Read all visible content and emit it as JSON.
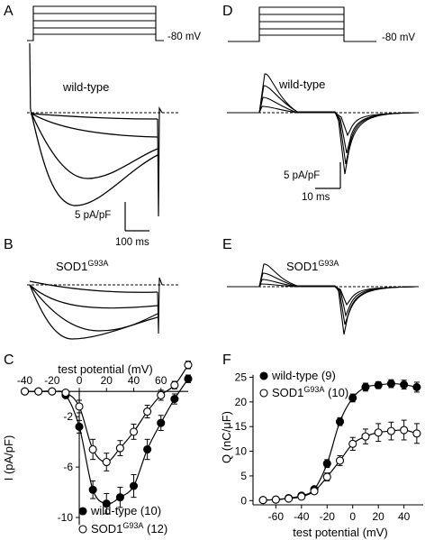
{
  "panels": {
    "A": {
      "letter": "A",
      "condition": "wild-type",
      "holding": "-80 mV",
      "scale_y": "5 pA/pF",
      "scale_x": "100 ms"
    },
    "B": {
      "letter": "B",
      "condition": "SOD1",
      "condition_sup": "G93A"
    },
    "D": {
      "letter": "D",
      "condition": "wild-type",
      "holding": "-80 mV",
      "scale_y": "5 pA/pF",
      "scale_x": "10 ms"
    },
    "E": {
      "letter": "E",
      "condition": "SOD1",
      "condition_sup": "G93A"
    },
    "C": {
      "letter": "C"
    },
    "F": {
      "letter": "F"
    }
  },
  "chart_data": [
    {
      "panel": "C",
      "type": "line",
      "title": "",
      "xlabel": "test potential (mV)",
      "ylabel": "I (pA/pF)",
      "xlim": [
        -45,
        82
      ],
      "ylim": [
        -11,
        0.8
      ],
      "x_ticks": [
        -40,
        -20,
        0,
        20,
        40,
        60
      ],
      "y_ticks": [
        -2,
        -6,
        -10
      ],
      "x_axis_position": "top",
      "legend_position": "bottom-left",
      "series": [
        {
          "name": "wild-type (10)",
          "marker": "filled-circle",
          "x": [
            -40,
            -30,
            -20,
            -10,
            0,
            10,
            20,
            30,
            40,
            50,
            60,
            70,
            80
          ],
          "y": [
            0,
            0,
            0,
            -0.3,
            -2.8,
            -7.8,
            -8.9,
            -8.4,
            -7.5,
            -4.6,
            -2.5,
            -0.6,
            1.0
          ],
          "err": [
            0,
            0,
            0,
            0.2,
            0.5,
            0.7,
            0.8,
            0.8,
            0.9,
            0.8,
            0.6,
            0.4,
            0.3
          ]
        },
        {
          "name": "SOD1G93A (12)",
          "name_base": "SOD1",
          "name_sup": "G93A",
          "name_count": "(12)",
          "marker": "open-circle",
          "x": [
            -40,
            -30,
            -20,
            -10,
            0,
            10,
            20,
            30,
            40,
            50,
            60,
            70,
            80
          ],
          "y": [
            0,
            0,
            0,
            -0.1,
            -1.2,
            -4.6,
            -5.6,
            -4.5,
            -3.2,
            -1.6,
            -0.3,
            0.5,
            2.1
          ],
          "err": [
            0,
            0,
            0,
            0.1,
            0.5,
            0.8,
            0.7,
            0.6,
            0.6,
            0.5,
            0.4,
            0.3,
            0.3
          ]
        }
      ]
    },
    {
      "panel": "F",
      "type": "line",
      "title": "",
      "xlabel": "test potential (mV)",
      "ylabel": "Q (nC/μF)",
      "xlim": [
        -75,
        55
      ],
      "ylim": [
        -0.5,
        26
      ],
      "x_ticks": [
        -60,
        -40,
        -20,
        0,
        20,
        40
      ],
      "y_ticks": [
        0,
        5,
        10,
        15,
        20,
        25
      ],
      "legend_position": "top-left",
      "series": [
        {
          "name": "wild-type (9)",
          "marker": "filled-circle",
          "x": [
            -70,
            -60,
            -50,
            -40,
            -30,
            -20,
            -10,
            0,
            10,
            20,
            30,
            40,
            50
          ],
          "y": [
            0.1,
            0.2,
            0.5,
            1.0,
            2.3,
            7.5,
            16.0,
            20.8,
            23.0,
            23.4,
            23.7,
            23.5,
            23.0
          ],
          "err": [
            0.1,
            0.1,
            0.2,
            0.2,
            0.4,
            0.8,
            0.8,
            0.8,
            0.8,
            0.7,
            0.8,
            0.9,
            1.0
          ]
        },
        {
          "name": "SOD1G93A (10)",
          "name_base": "SOD1",
          "name_sup": "G93A",
          "name_count": "(10)",
          "marker": "open-circle",
          "x": [
            -70,
            -60,
            -50,
            -40,
            -30,
            -20,
            -10,
            0,
            10,
            20,
            30,
            40,
            50
          ],
          "y": [
            0.1,
            0.2,
            0.4,
            0.8,
            1.9,
            4.8,
            8.1,
            11.5,
            13.0,
            13.8,
            14.1,
            14.3,
            13.6
          ],
          "err": [
            0.1,
            0.1,
            0.2,
            0.2,
            0.4,
            0.8,
            1.0,
            1.3,
            1.5,
            1.8,
            1.8,
            2.0,
            2.0
          ]
        }
      ]
    }
  ]
}
